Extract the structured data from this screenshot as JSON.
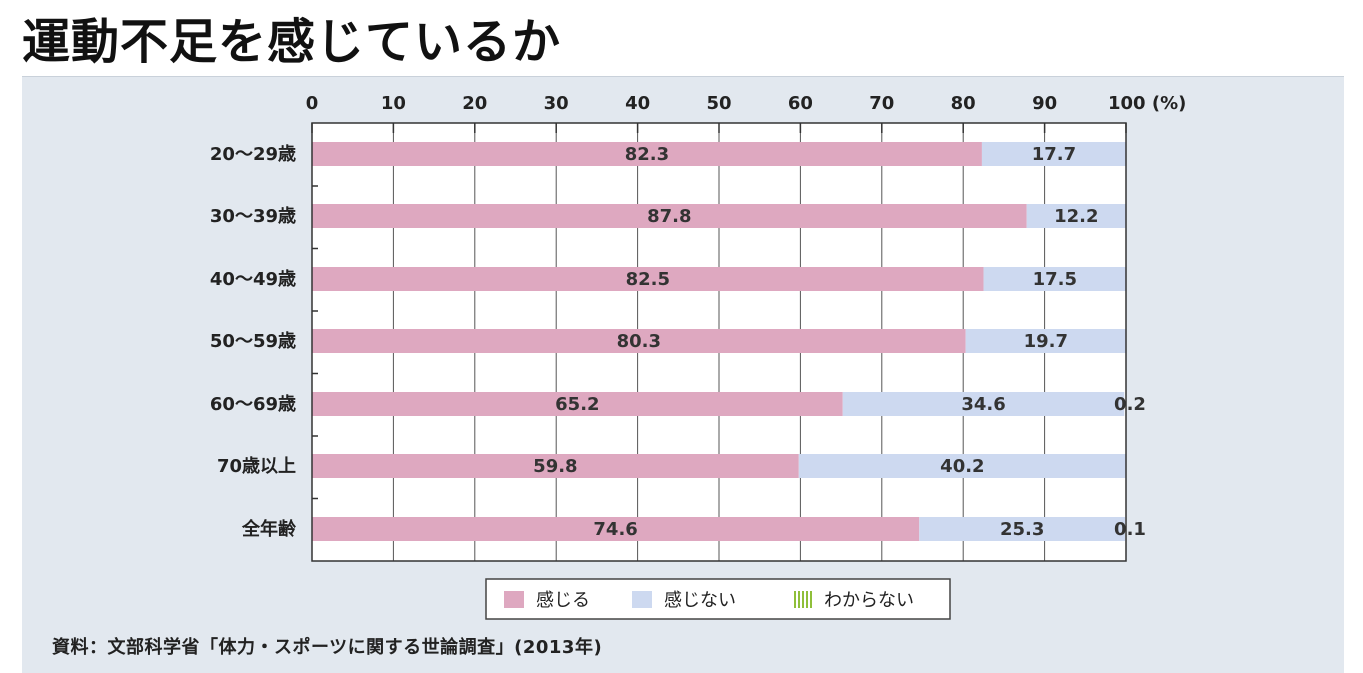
{
  "page": {
    "title": "運動不足を感じているか",
    "source": "資料：文部科学省「体力・スポーツに関する世論調査」(2013年)"
  },
  "chart_data": {
    "type": "bar",
    "orientation": "horizontal",
    "stacked": true,
    "title": "運動不足を感じているか",
    "unit_label": "100 (%)",
    "xlim": [
      0,
      100
    ],
    "x_ticks": [
      0,
      10,
      20,
      30,
      40,
      50,
      60,
      70,
      80,
      90,
      100
    ],
    "x_tick_labels": [
      "0",
      "10",
      "20",
      "30",
      "40",
      "50",
      "60",
      "70",
      "80",
      "90",
      "100 (%)"
    ],
    "categories": [
      "20～29歳",
      "30～39歳",
      "40～49歳",
      "50～59歳",
      "60～69歳",
      "70歳以上",
      "全年齢"
    ],
    "series": [
      {
        "name": "感じる",
        "color": "#dea8c0",
        "values": [
          82.3,
          87.8,
          82.5,
          80.3,
          65.2,
          59.8,
          74.6
        ],
        "labels": [
          "82.3",
          "87.8",
          "82.5",
          "80.3",
          "65.2",
          "59.8",
          "74.6"
        ]
      },
      {
        "name": "感じない",
        "color": "#cdd9f0",
        "values": [
          17.7,
          12.2,
          17.5,
          19.7,
          34.6,
          40.2,
          25.3
        ],
        "labels": [
          "17.7",
          "12.2",
          "17.5",
          "19.7",
          "34.6",
          "40.2",
          "25.3"
        ]
      },
      {
        "name": "わからない",
        "color": "#8fbf3a",
        "pattern": "vertical-stripes",
        "values": [
          0,
          0,
          0,
          0,
          0.2,
          0,
          0.1
        ],
        "labels": [
          "",
          "",
          "",
          "",
          "0.2",
          "",
          "0.1"
        ]
      }
    ],
    "legend": {
      "position": "bottom"
    },
    "grid": "vertical"
  }
}
